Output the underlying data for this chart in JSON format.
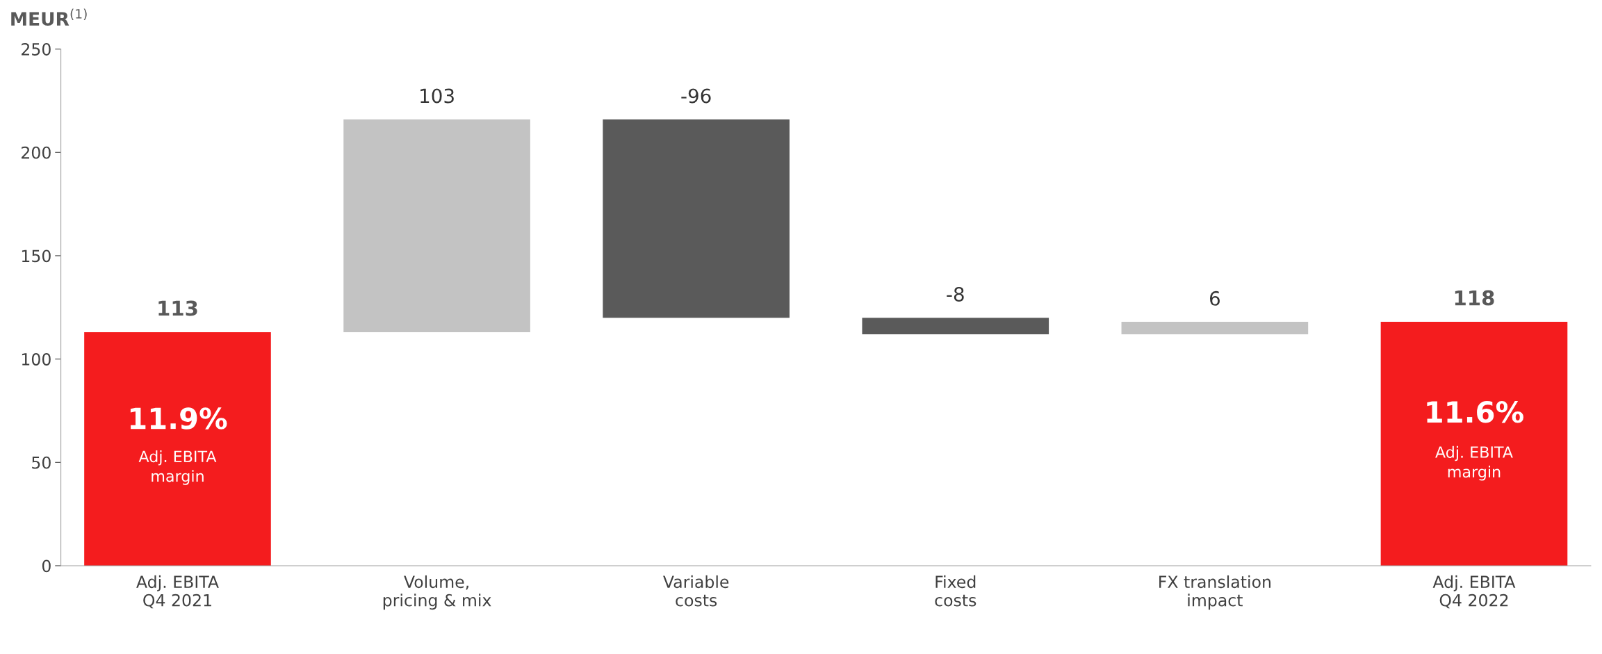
{
  "chart_data": {
    "type": "bar",
    "ylabel": "MEUR$^{(1)}$",
    "categories": [
      "Adj. EBITA\nQ4 2021",
      "Volume,\npricing & mix",
      "Variable\ncosts",
      "Fixed\ncosts",
      "FX translation\nimpact",
      "Adj. EBITA\nQ4 2022"
    ],
    "values": [
      113,
      103,
      -96,
      -8,
      6,
      118
    ],
    "base": [
      0,
      113,
      216,
      120,
      112,
      0
    ],
    "colors": [
      "#f41c1e",
      "#c3c3c3",
      "#5a5a5a",
      "#5a5a5a",
      "#c3c3c3",
      "#f41c1e"
    ],
    "data_labels": true,
    "ylim": [
      0,
      250
    ],
    "yticks": [
      0,
      50,
      100,
      150,
      200,
      250
    ],
    "grid": false,
    "legend": false,
    "annotations": [
      "11.9%",
      "Adj. EBITA\nmargin",
      "11.6%",
      "Adj. EBITA\nmargin"
    ]
  }
}
